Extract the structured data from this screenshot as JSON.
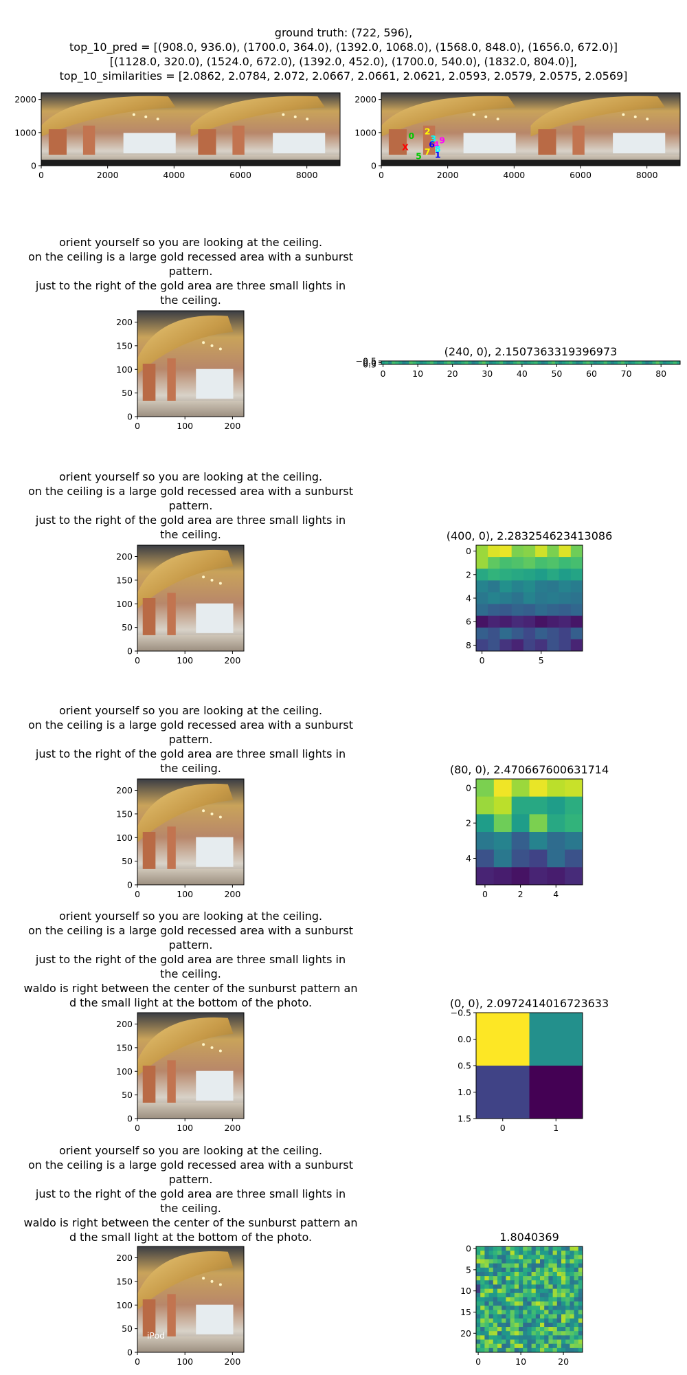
{
  "header": {
    "lines": [
      "ground truth: (722, 596),",
      "top_10_pred = [(908.0, 936.0), (1700.0, 364.0), (1392.0, 1068.0), (1568.0, 848.0), (1656.0, 672.0)]",
      "[(1128.0, 320.0), (1524.0, 672.0), (1392.0, 452.0), (1700.0, 540.0), (1832.0, 804.0)],",
      "top_10_similarities = [2.0862, 2.0784, 2.072, 2.0667, 2.0661, 2.0621, 2.0593, 2.0579, 2.0575, 2.0569]"
    ]
  },
  "captions": [
    [
      "orient yourself so you are looking at the ceiling.",
      "on the ceiling is a large gold recessed area with a sunburst",
      "pattern.",
      "just to the right of the gold area are three small lights in",
      "the ceiling."
    ],
    [
      "orient yourself so you are looking at the ceiling.",
      "on the ceiling is a large gold recessed area with a sunburst",
      "pattern.",
      "just to the right of the gold area are three small lights in",
      "the ceiling."
    ],
    [
      "orient yourself so you are looking at the ceiling.",
      "on the ceiling is a large gold recessed area with a sunburst",
      "pattern.",
      "just to the right of the gold area are three small lights in",
      "the ceiling."
    ],
    [
      "orient yourself so you are looking at the ceiling.",
      "on the ceiling is a large gold recessed area with a sunburst",
      "pattern.",
      "just to the right of the gold area are three small lights in",
      "the ceiling.",
      "waldo is right between the center of the sunburst pattern an",
      "d the small light at the bottom of the photo."
    ],
    [
      "orient yourself so you are looking at the ceiling.",
      "on the ceiling is a large gold recessed area with a sunburst",
      "pattern.",
      "just to the right of the gold area are three small lights in",
      "the ceiling.",
      "waldo is right between the center of the sunburst pattern an",
      "d the small light at the bottom of the photo."
    ]
  ],
  "chart_data": [
    {
      "type": "image",
      "panel": "panorama",
      "xlim": [
        0,
        9000
      ],
      "ylim": [
        2200,
        0
      ],
      "xticks": [
        0,
        2000,
        4000,
        6000,
        8000
      ],
      "yticks": [
        0,
        1000,
        2000
      ]
    },
    {
      "type": "image",
      "panel": "panorama-predictions",
      "xlim": [
        0,
        9000
      ],
      "ylim": [
        2200,
        0
      ],
      "xticks": [
        0,
        2000,
        4000,
        6000,
        8000
      ],
      "yticks": [
        0,
        1000,
        2000
      ],
      "markers": [
        {
          "label": "0",
          "color": "#00c800",
          "x": 908,
          "y": 936
        },
        {
          "label": "1",
          "color": "#0000ff",
          "x": 1700,
          "y": 364
        },
        {
          "label": "2",
          "color": "#ffff00",
          "x": 1392,
          "y": 1068
        },
        {
          "label": "3",
          "color": "#00ffff",
          "x": 1568,
          "y": 848
        },
        {
          "label": "4",
          "color": "#ff00ff",
          "x": 1656,
          "y": 672
        },
        {
          "label": "5",
          "color": "#00c800",
          "x": 1128,
          "y": 320
        },
        {
          "label": "6",
          "color": "#0000ff",
          "x": 1524,
          "y": 672
        },
        {
          "label": "7",
          "color": "#ffff00",
          "x": 1392,
          "y": 452
        },
        {
          "label": "8",
          "color": "#00ffff",
          "x": 1700,
          "y": 540
        },
        {
          "label": "9",
          "color": "#ff00ff",
          "x": 1832,
          "y": 804
        },
        {
          "label": "X",
          "color": "#ff0000",
          "x": 722,
          "y": 596
        }
      ]
    },
    {
      "type": "image",
      "panel": "view-1",
      "xlim": [
        0,
        224
      ],
      "ylim": [
        224,
        0
      ],
      "xticks": [
        0,
        100,
        200
      ],
      "yticks": [
        0,
        50,
        100,
        150,
        200
      ]
    },
    {
      "type": "heatmap",
      "panel": "heat-1",
      "title": "(240, 0), 2.1507363319396973",
      "rows": 1,
      "cols": 86,
      "xticks": [
        0,
        10,
        20,
        30,
        40,
        50,
        60,
        70,
        80
      ],
      "yticks": [
        "−0.5",
        "0.0",
        "0.5"
      ],
      "values": [
        [
          0.55,
          0.62,
          0.48,
          0.7,
          0.66,
          0.58,
          0.45,
          0.52,
          0.73,
          0.68,
          0.6,
          0.5,
          0.57,
          0.64,
          0.71,
          0.59,
          0.47,
          0.53,
          0.66,
          0.72,
          0.61,
          0.49,
          0.56,
          0.63,
          0.69,
          0.58,
          0.44,
          0.51,
          0.67,
          0.74,
          0.62,
          0.48,
          0.55,
          0.61,
          0.7,
          0.57,
          0.46,
          0.54,
          0.65,
          0.71,
          0.6,
          0.5,
          0.58,
          0.64,
          0.68,
          0.56,
          0.45,
          0.52,
          0.66,
          0.73,
          0.61,
          0.49,
          0.57,
          0.63,
          0.69,
          0.59,
          0.47,
          0.53,
          0.67,
          0.72,
          0.62,
          0.48,
          0.55,
          0.6,
          0.7,
          0.58,
          0.46,
          0.54,
          0.64,
          0.71,
          0.6,
          0.51,
          0.57,
          0.65,
          0.68,
          0.56,
          0.44,
          0.52,
          0.66,
          0.74,
          0.63,
          0.49,
          0.56,
          0.62,
          0.69,
          0.58
        ]
      ]
    },
    {
      "type": "image",
      "panel": "view-2",
      "xlim": [
        0,
        224
      ],
      "ylim": [
        224,
        0
      ],
      "xticks": [
        0,
        100,
        200
      ],
      "yticks": [
        0,
        50,
        100,
        150,
        200
      ]
    },
    {
      "type": "heatmap",
      "panel": "heat-2",
      "title": "(400, 0), 2.283254623413086",
      "rows": 9,
      "cols": 9,
      "xticks": [
        0,
        5
      ],
      "yticks": [
        0,
        2,
        4,
        6,
        8
      ],
      "values": [
        [
          0.85,
          0.95,
          0.97,
          0.8,
          0.82,
          0.93,
          0.8,
          0.95,
          0.78
        ],
        [
          0.85,
          0.75,
          0.7,
          0.72,
          0.75,
          0.7,
          0.72,
          0.68,
          0.7
        ],
        [
          0.6,
          0.65,
          0.62,
          0.6,
          0.58,
          0.55,
          0.6,
          0.55,
          0.58
        ],
        [
          0.45,
          0.4,
          0.5,
          0.45,
          0.48,
          0.42,
          0.4,
          0.45,
          0.42
        ],
        [
          0.4,
          0.45,
          0.42,
          0.38,
          0.45,
          0.4,
          0.42,
          0.4,
          0.38
        ],
        [
          0.35,
          0.3,
          0.28,
          0.32,
          0.3,
          0.35,
          0.32,
          0.3,
          0.33
        ],
        [
          0.05,
          0.1,
          0.08,
          0.12,
          0.1,
          0.05,
          0.08,
          0.1,
          0.06
        ],
        [
          0.3,
          0.25,
          0.35,
          0.28,
          0.22,
          0.3,
          0.25,
          0.2,
          0.3
        ],
        [
          0.2,
          0.25,
          0.15,
          0.1,
          0.2,
          0.15,
          0.25,
          0.2,
          0.1
        ]
      ]
    },
    {
      "type": "image",
      "panel": "view-3",
      "xlim": [
        0,
        224
      ],
      "ylim": [
        224,
        0
      ],
      "xticks": [
        0,
        100,
        200
      ],
      "yticks": [
        0,
        50,
        100,
        150,
        200
      ]
    },
    {
      "type": "heatmap",
      "panel": "heat-3",
      "title": "(80, 0), 2.470667600631714",
      "rows": 6,
      "cols": 6,
      "xticks": [
        0,
        2,
        4
      ],
      "yticks": [
        0,
        2,
        4
      ],
      "values": [
        [
          0.8,
          0.98,
          0.85,
          0.97,
          0.9,
          0.92
        ],
        [
          0.85,
          0.9,
          0.6,
          0.6,
          0.55,
          0.62
        ],
        [
          0.55,
          0.78,
          0.55,
          0.8,
          0.6,
          0.65
        ],
        [
          0.4,
          0.45,
          0.3,
          0.45,
          0.35,
          0.4
        ],
        [
          0.25,
          0.4,
          0.25,
          0.2,
          0.35,
          0.25
        ],
        [
          0.1,
          0.08,
          0.05,
          0.1,
          0.08,
          0.12
        ]
      ]
    },
    {
      "type": "image",
      "panel": "view-4",
      "xlim": [
        0,
        224
      ],
      "ylim": [
        224,
        0
      ],
      "xticks": [
        0,
        100,
        200
      ],
      "yticks": [
        0,
        50,
        100,
        150,
        200
      ]
    },
    {
      "type": "heatmap",
      "panel": "heat-4",
      "title": "(0, 0), 2.0972414016723633",
      "rows": 2,
      "cols": 2,
      "xticks": [
        0,
        1
      ],
      "yticks": [
        "−0.5",
        "0.0",
        "0.5",
        "1.0",
        "1.5"
      ],
      "values": [
        [
          1.0,
          0.5
        ],
        [
          0.2,
          0.0
        ]
      ]
    },
    {
      "type": "image",
      "panel": "view-5",
      "xlim": [
        0,
        224
      ],
      "ylim": [
        224,
        0
      ],
      "xticks": [
        0,
        100,
        200
      ],
      "yticks": [
        0,
        50,
        100,
        150,
        200
      ],
      "overlay_text": "iPod"
    },
    {
      "type": "heatmap",
      "panel": "heat-5",
      "title": "1.8040369",
      "rows": 25,
      "cols": 25,
      "xticks": [
        0,
        10,
        20
      ],
      "yticks": [
        0,
        5,
        10,
        15,
        20
      ],
      "values": "generated-noise"
    }
  ]
}
